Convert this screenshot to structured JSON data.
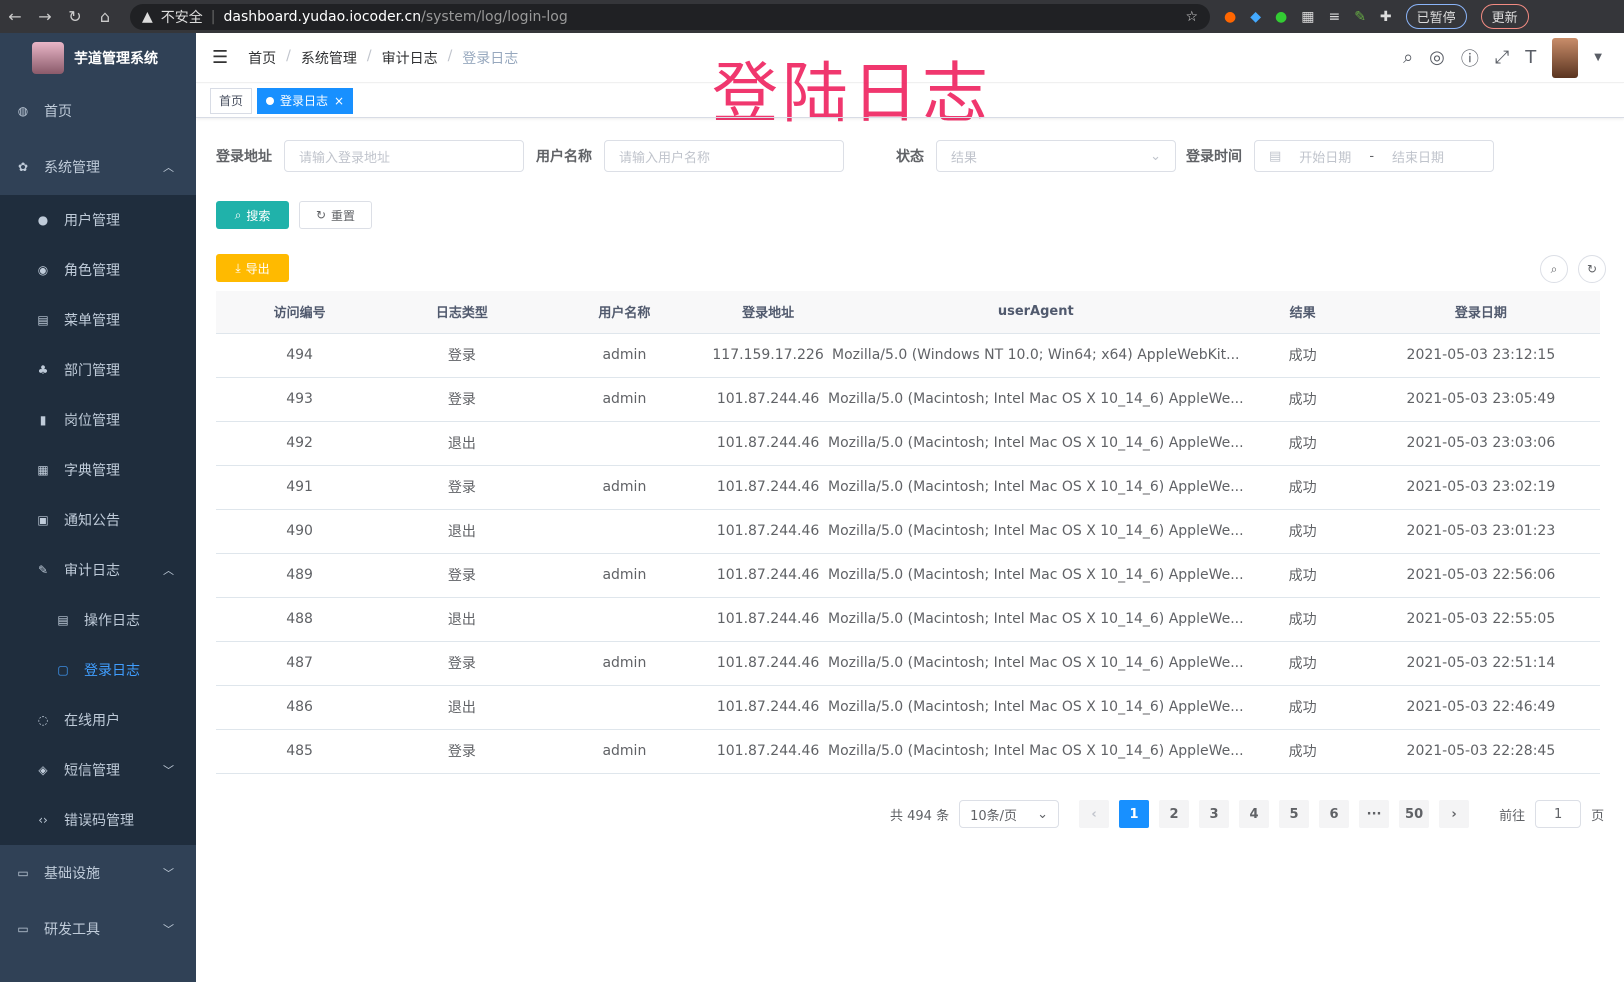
{
  "browser": {
    "security": "不安全",
    "host": "dashboard.yudao.iocoder.cn",
    "path": "/system/log/login-log",
    "paused": "已暂停",
    "update": "更新"
  },
  "app": {
    "title": "芋道管理系统"
  },
  "sidebar": {
    "items": [
      {
        "label": "首页",
        "icon": "dashboard-icon",
        "level": 0
      },
      {
        "label": "系统管理",
        "icon": "gear-icon",
        "level": 0,
        "expanded": true
      },
      {
        "label": "用户管理",
        "icon": "user-icon",
        "level": 1
      },
      {
        "label": "角色管理",
        "icon": "role-icon",
        "level": 1
      },
      {
        "label": "菜单管理",
        "icon": "menu-icon",
        "level": 1
      },
      {
        "label": "部门管理",
        "icon": "tree-icon",
        "level": 1
      },
      {
        "label": "岗位管理",
        "icon": "post-icon",
        "level": 1
      },
      {
        "label": "字典管理",
        "icon": "dict-icon",
        "level": 1
      },
      {
        "label": "通知公告",
        "icon": "message-icon",
        "level": 1
      },
      {
        "label": "审计日志",
        "icon": "log-icon",
        "level": 1,
        "expanded": true
      },
      {
        "label": "操作日志",
        "icon": "form-icon",
        "level": 2
      },
      {
        "label": "登录日志",
        "icon": "logininfor-icon",
        "level": 2,
        "active": true
      },
      {
        "label": "在线用户",
        "icon": "online-icon",
        "level": 1
      },
      {
        "label": "短信管理",
        "icon": "sms-icon",
        "level": 1,
        "collapsed": true
      },
      {
        "label": "错误码管理",
        "icon": "code-icon",
        "level": 1
      },
      {
        "label": "基础设施",
        "icon": "monitor-icon",
        "level": 0,
        "collapsed": true
      },
      {
        "label": "研发工具",
        "icon": "tool-icon",
        "level": 0,
        "collapsed": true
      }
    ]
  },
  "breadcrumb": [
    "首页",
    "系统管理",
    "审计日志",
    "登录日志"
  ],
  "watermark": "登陆日志",
  "tags": {
    "home": "首页",
    "current": "登录日志"
  },
  "filters": {
    "address": {
      "label": "登录地址",
      "placeholder": "请输入登录地址"
    },
    "username": {
      "label": "用户名称",
      "placeholder": "请输入用户名称"
    },
    "status": {
      "label": "状态",
      "placeholder": "结果"
    },
    "time": {
      "label": "登录时间",
      "start": "开始日期",
      "sep": "-",
      "end": "结束日期"
    }
  },
  "buttons": {
    "search": "搜索",
    "reset": "重置",
    "export": "导出"
  },
  "colors": {
    "primary": "#1890ff",
    "search": "#20b2aa",
    "export": "#ffba00",
    "sidebar": "#304156"
  },
  "table": {
    "columns": [
      "访问编号",
      "日志类型",
      "用户名称",
      "登录地址",
      "userAgent",
      "结果",
      "登录日期"
    ],
    "rows": [
      [
        "494",
        "登录",
        "admin",
        "117.159.17.226",
        "Mozilla/5.0 (Windows NT 10.0; Win64; x64) AppleWebKit...",
        "成功",
        "2021-05-03 23:12:15"
      ],
      [
        "493",
        "登录",
        "admin",
        "101.87.244.46",
        "Mozilla/5.0 (Macintosh; Intel Mac OS X 10_14_6) AppleWe...",
        "成功",
        "2021-05-03 23:05:49"
      ],
      [
        "492",
        "退出",
        "",
        "101.87.244.46",
        "Mozilla/5.0 (Macintosh; Intel Mac OS X 10_14_6) AppleWe...",
        "成功",
        "2021-05-03 23:03:06"
      ],
      [
        "491",
        "登录",
        "admin",
        "101.87.244.46",
        "Mozilla/5.0 (Macintosh; Intel Mac OS X 10_14_6) AppleWe...",
        "成功",
        "2021-05-03 23:02:19"
      ],
      [
        "490",
        "退出",
        "",
        "101.87.244.46",
        "Mozilla/5.0 (Macintosh; Intel Mac OS X 10_14_6) AppleWe...",
        "成功",
        "2021-05-03 23:01:23"
      ],
      [
        "489",
        "登录",
        "admin",
        "101.87.244.46",
        "Mozilla/5.0 (Macintosh; Intel Mac OS X 10_14_6) AppleWe...",
        "成功",
        "2021-05-03 22:56:06"
      ],
      [
        "488",
        "退出",
        "",
        "101.87.244.46",
        "Mozilla/5.0 (Macintosh; Intel Mac OS X 10_14_6) AppleWe...",
        "成功",
        "2021-05-03 22:55:05"
      ],
      [
        "487",
        "登录",
        "admin",
        "101.87.244.46",
        "Mozilla/5.0 (Macintosh; Intel Mac OS X 10_14_6) AppleWe...",
        "成功",
        "2021-05-03 22:51:14"
      ],
      [
        "486",
        "退出",
        "",
        "101.87.244.46",
        "Mozilla/5.0 (Macintosh; Intel Mac OS X 10_14_6) AppleWe...",
        "成功",
        "2021-05-03 22:46:49"
      ],
      [
        "485",
        "登录",
        "admin",
        "101.87.244.46",
        "Mozilla/5.0 (Macintosh; Intel Mac OS X 10_14_6) AppleWe...",
        "成功",
        "2021-05-03 22:28:45"
      ]
    ]
  },
  "pagination": {
    "total": "共 494 条",
    "size": "10条/页",
    "pages": [
      "1",
      "2",
      "3",
      "4",
      "5",
      "6",
      "···",
      "50"
    ],
    "current": "1",
    "goto": "前往",
    "goto_value": "1",
    "page_unit": "页"
  }
}
